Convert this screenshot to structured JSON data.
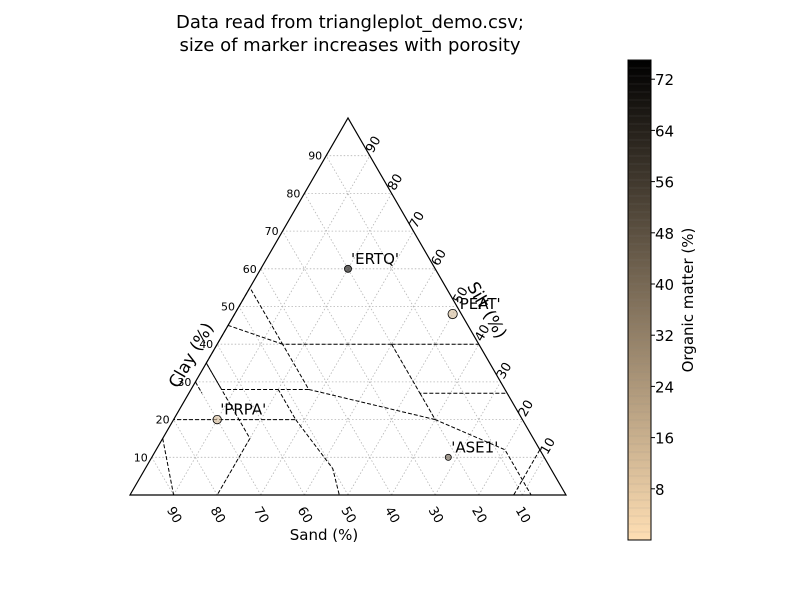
{
  "chart_data": {
    "type": "scatter",
    "title_lines": [
      "Data read from triangleplot_demo.csv;",
      "size of marker increases with porosity"
    ],
    "axes": {
      "sand_label": "Sand (%)",
      "clay_label": "Clay (%)",
      "silt_label": "Silt (%)"
    },
    "ticks": {
      "sand": [
        90,
        80,
        70,
        60,
        50,
        40,
        30,
        20,
        10
      ],
      "clay": [
        90,
        80,
        70,
        60,
        50,
        40,
        30,
        20,
        10
      ],
      "silt": [
        10,
        20,
        30,
        40,
        50,
        60,
        70,
        80,
        90
      ]
    },
    "grid": true,
    "points": [
      {
        "label": "'ERTQ'",
        "sand": 20,
        "silt": 20,
        "clay": 60,
        "organic_matter": 70,
        "porosity": 45
      },
      {
        "label": "'PEAT'",
        "sand": 2,
        "silt": 50,
        "clay": 48,
        "organic_matter": 14,
        "porosity": 70
      },
      {
        "label": "'ASE1'",
        "sand": 22,
        "silt": 68,
        "clay": 10,
        "organic_matter": 45,
        "porosity": 35
      },
      {
        "label": "'PRPA'",
        "sand": 70,
        "silt": 10,
        "clay": 20,
        "organic_matter": 12,
        "porosity": 60
      }
    ],
    "colorbar": {
      "label": "Organic matter (%)",
      "min": 0,
      "max": 75,
      "ticks": [
        8,
        16,
        24,
        32,
        40,
        48,
        56,
        64,
        72
      ],
      "color_low": "#ffdfb4",
      "color_high": "#000000"
    },
    "texture_class_boundaries": [
      [
        [
          45,
          0,
          55
        ],
        [
          65,
          0,
          35
        ],
        [
          65,
          20,
          15
        ],
        [
          80,
          20,
          0
        ]
      ],
      [
        [
          20,
          40,
          40
        ],
        [
          45,
          15,
          40
        ],
        [
          45,
          0,
          55
        ]
      ],
      [
        [
          20,
          40,
          40
        ],
        [
          0,
          60,
          40
        ]
      ],
      [
        [
          20,
          40,
          40
        ],
        [
          20,
          53,
          27
        ],
        [
          0,
          73,
          27
        ]
      ],
      [
        [
          20,
          53,
          27
        ],
        [
          20,
          60,
          20
        ],
        [
          8,
          80,
          12
        ],
        [
          8,
          92,
          0
        ]
      ],
      [
        [
          20,
          60,
          20
        ],
        [
          45,
          27,
          28
        ],
        [
          45,
          15,
          40
        ]
      ],
      [
        [
          45,
          27,
          28
        ],
        [
          52,
          20,
          28
        ],
        [
          52,
          28,
          20
        ],
        [
          80,
          0,
          20
        ]
      ],
      [
        [
          65,
          0,
          35
        ],
        [
          65,
          7,
          28
        ],
        [
          52,
          20,
          28
        ]
      ],
      [
        [
          45,
          15,
          40
        ],
        [
          55,
          0,
          45
        ]
      ],
      [
        [
          52,
          28,
          20
        ],
        [
          50,
          43,
          7
        ],
        [
          52,
          48,
          0
        ]
      ],
      [
        [
          85,
          0,
          15
        ],
        [
          90,
          10,
          0
        ]
      ],
      [
        [
          0,
          88,
          12
        ],
        [
          12,
          88,
          0
        ]
      ],
      [
        [
          70,
          0,
          30
        ],
        [
          70,
          3,
          27
        ]
      ]
    ]
  }
}
